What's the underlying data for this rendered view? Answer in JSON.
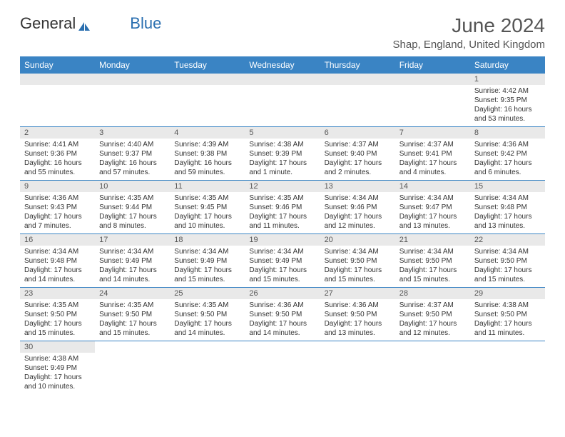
{
  "logo": {
    "text1": "General",
    "text2": "Blue"
  },
  "title": "June 2024",
  "location": "Shap, England, United Kingdom",
  "colors": {
    "header_bg": "#3a84c4",
    "header_text": "#ffffff",
    "daynum_bg": "#e9e9e9",
    "border": "#3a84c4",
    "text": "#333333",
    "logo_blue": "#2a6fb0"
  },
  "weekdays": [
    "Sunday",
    "Monday",
    "Tuesday",
    "Wednesday",
    "Thursday",
    "Friday",
    "Saturday"
  ],
  "weeks": [
    [
      null,
      null,
      null,
      null,
      null,
      null,
      {
        "d": "1",
        "sr": "4:42 AM",
        "ss": "9:35 PM",
        "dl": "16 hours and 53 minutes."
      }
    ],
    [
      {
        "d": "2",
        "sr": "4:41 AM",
        "ss": "9:36 PM",
        "dl": "16 hours and 55 minutes."
      },
      {
        "d": "3",
        "sr": "4:40 AM",
        "ss": "9:37 PM",
        "dl": "16 hours and 57 minutes."
      },
      {
        "d": "4",
        "sr": "4:39 AM",
        "ss": "9:38 PM",
        "dl": "16 hours and 59 minutes."
      },
      {
        "d": "5",
        "sr": "4:38 AM",
        "ss": "9:39 PM",
        "dl": "17 hours and 1 minute."
      },
      {
        "d": "6",
        "sr": "4:37 AM",
        "ss": "9:40 PM",
        "dl": "17 hours and 2 minutes."
      },
      {
        "d": "7",
        "sr": "4:37 AM",
        "ss": "9:41 PM",
        "dl": "17 hours and 4 minutes."
      },
      {
        "d": "8",
        "sr": "4:36 AM",
        "ss": "9:42 PM",
        "dl": "17 hours and 6 minutes."
      }
    ],
    [
      {
        "d": "9",
        "sr": "4:36 AM",
        "ss": "9:43 PM",
        "dl": "17 hours and 7 minutes."
      },
      {
        "d": "10",
        "sr": "4:35 AM",
        "ss": "9:44 PM",
        "dl": "17 hours and 8 minutes."
      },
      {
        "d": "11",
        "sr": "4:35 AM",
        "ss": "9:45 PM",
        "dl": "17 hours and 10 minutes."
      },
      {
        "d": "12",
        "sr": "4:35 AM",
        "ss": "9:46 PM",
        "dl": "17 hours and 11 minutes."
      },
      {
        "d": "13",
        "sr": "4:34 AM",
        "ss": "9:46 PM",
        "dl": "17 hours and 12 minutes."
      },
      {
        "d": "14",
        "sr": "4:34 AM",
        "ss": "9:47 PM",
        "dl": "17 hours and 13 minutes."
      },
      {
        "d": "15",
        "sr": "4:34 AM",
        "ss": "9:48 PM",
        "dl": "17 hours and 13 minutes."
      }
    ],
    [
      {
        "d": "16",
        "sr": "4:34 AM",
        "ss": "9:48 PM",
        "dl": "17 hours and 14 minutes."
      },
      {
        "d": "17",
        "sr": "4:34 AM",
        "ss": "9:49 PM",
        "dl": "17 hours and 14 minutes."
      },
      {
        "d": "18",
        "sr": "4:34 AM",
        "ss": "9:49 PM",
        "dl": "17 hours and 15 minutes."
      },
      {
        "d": "19",
        "sr": "4:34 AM",
        "ss": "9:49 PM",
        "dl": "17 hours and 15 minutes."
      },
      {
        "d": "20",
        "sr": "4:34 AM",
        "ss": "9:50 PM",
        "dl": "17 hours and 15 minutes."
      },
      {
        "d": "21",
        "sr": "4:34 AM",
        "ss": "9:50 PM",
        "dl": "17 hours and 15 minutes."
      },
      {
        "d": "22",
        "sr": "4:34 AM",
        "ss": "9:50 PM",
        "dl": "17 hours and 15 minutes."
      }
    ],
    [
      {
        "d": "23",
        "sr": "4:35 AM",
        "ss": "9:50 PM",
        "dl": "17 hours and 15 minutes."
      },
      {
        "d": "24",
        "sr": "4:35 AM",
        "ss": "9:50 PM",
        "dl": "17 hours and 15 minutes."
      },
      {
        "d": "25",
        "sr": "4:35 AM",
        "ss": "9:50 PM",
        "dl": "17 hours and 14 minutes."
      },
      {
        "d": "26",
        "sr": "4:36 AM",
        "ss": "9:50 PM",
        "dl": "17 hours and 14 minutes."
      },
      {
        "d": "27",
        "sr": "4:36 AM",
        "ss": "9:50 PM",
        "dl": "17 hours and 13 minutes."
      },
      {
        "d": "28",
        "sr": "4:37 AM",
        "ss": "9:50 PM",
        "dl": "17 hours and 12 minutes."
      },
      {
        "d": "29",
        "sr": "4:38 AM",
        "ss": "9:50 PM",
        "dl": "17 hours and 11 minutes."
      }
    ],
    [
      {
        "d": "30",
        "sr": "4:38 AM",
        "ss": "9:49 PM",
        "dl": "17 hours and 10 minutes."
      },
      null,
      null,
      null,
      null,
      null,
      null
    ]
  ],
  "labels": {
    "sunrise": "Sunrise:",
    "sunset": "Sunset:",
    "daylight": "Daylight:"
  }
}
